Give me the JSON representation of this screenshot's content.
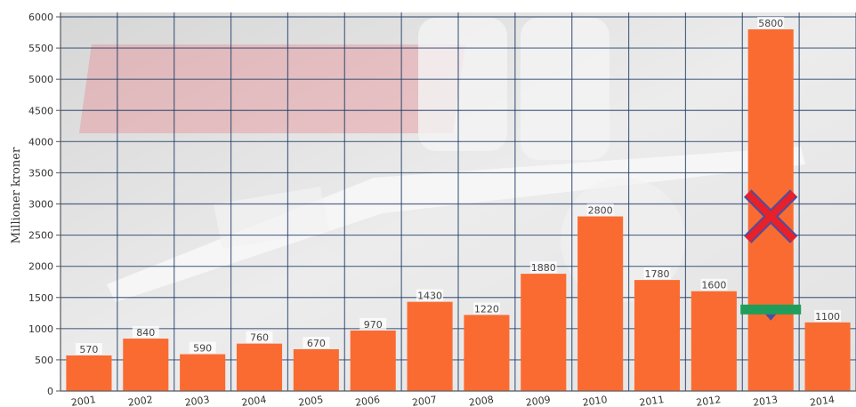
{
  "chart_data": {
    "type": "bar",
    "title": "",
    "xlabel": "",
    "ylabel": "Millioner kroner",
    "ylim": [
      0,
      6000
    ],
    "yticks": [
      0,
      500,
      1000,
      1500,
      2000,
      2500,
      3000,
      3500,
      4000,
      4500,
      5000,
      5500,
      6000
    ],
    "grid": true,
    "legend": "none",
    "categories": [
      "2001",
      "2002",
      "2003",
      "2004",
      "2005",
      "2006",
      "2007",
      "2008",
      "2009",
      "2010",
      "2011",
      "2012",
      "2013",
      "2014"
    ],
    "values": [
      570,
      840,
      590,
      760,
      670,
      970,
      1430,
      1220,
      1880,
      2800,
      1780,
      1600,
      5800,
      1100
    ],
    "bar_color": "#fa6b32",
    "grid_color": "#1e3a66",
    "annotations": {
      "cross_mark": {
        "category": "2013",
        "y": 2800,
        "color": "#e8202a"
      },
      "green_marker": {
        "category": "2013",
        "y": 1300,
        "color": "#1e9e5a"
      }
    }
  }
}
